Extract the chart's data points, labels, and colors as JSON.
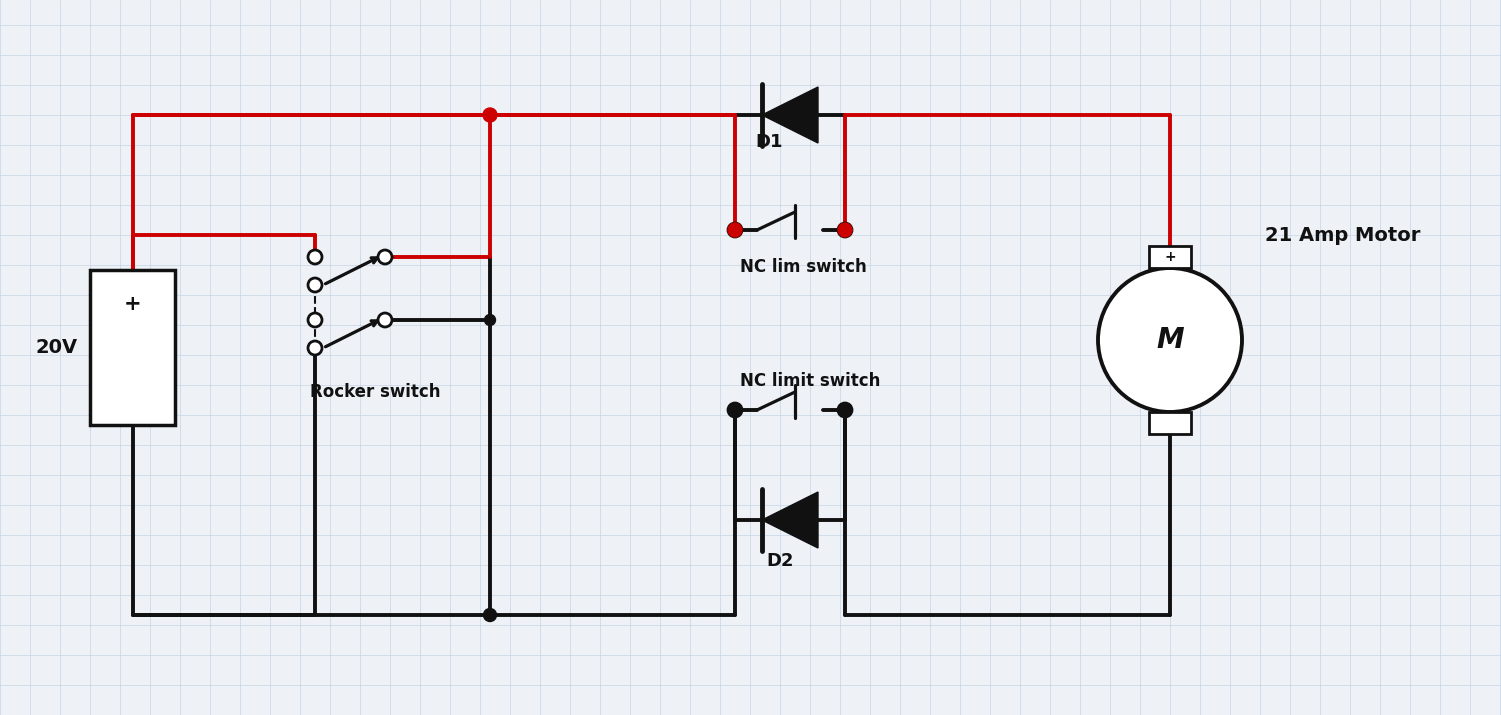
{
  "bg_color": "#eef2f7",
  "grid_color": "#c5d5e5",
  "red": "#cc0000",
  "black": "#111111",
  "white": "#ffffff",
  "label_20v": "20V",
  "label_rocker": "Rocker switch",
  "label_nc_lim": "NC lim switch",
  "label_nc_limit": "NC limit switch",
  "label_motor": "21 Amp Motor",
  "label_d1": "D1",
  "label_d2": "D2",
  "lw": 2.8,
  "dot_r": 0.055,
  "oc_r": 0.07
}
